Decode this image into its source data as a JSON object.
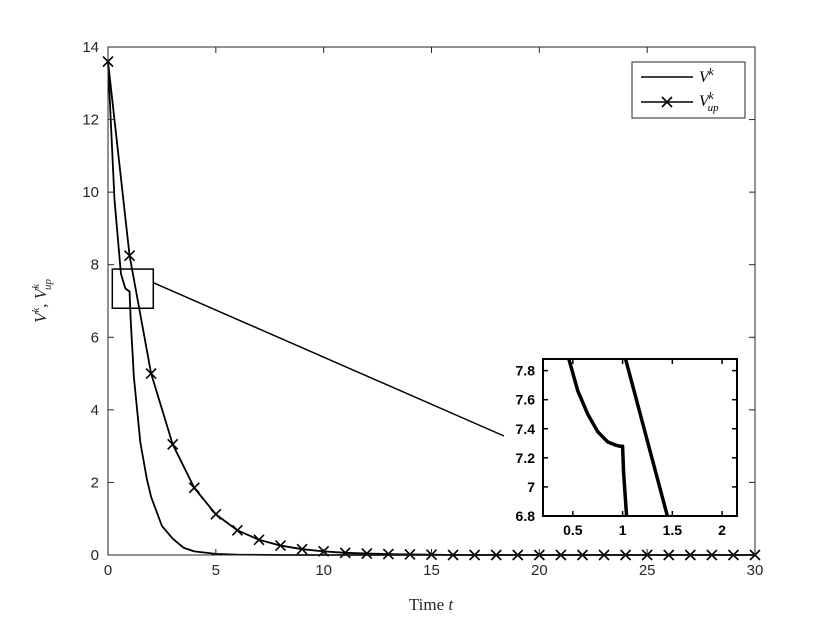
{
  "chart_data": {
    "type": "line",
    "xlabel": "Time t",
    "ylabel": "V^k, V^k_up",
    "xlim": [
      0,
      30
    ],
    "ylim": [
      0,
      14
    ],
    "xticks": [
      0,
      5,
      10,
      15,
      20,
      25,
      30
    ],
    "yticks": [
      0,
      2,
      4,
      6,
      8,
      10,
      12,
      14
    ],
    "grid": false,
    "legend_position": "top-right",
    "series": [
      {
        "name": "V^k",
        "marker": "none",
        "x": [
          0,
          0.3,
          0.6,
          0.8,
          0.95,
          1.0,
          1.05,
          1.2,
          1.5,
          1.8,
          2.0,
          2.5,
          3.0,
          3.5,
          4.0,
          5.0,
          6.0,
          8.0,
          10.0,
          15.0,
          20.0,
          25.0,
          30.0
        ],
        "y": [
          13.6,
          9.8,
          7.75,
          7.35,
          7.28,
          7.27,
          6.5,
          4.9,
          3.1,
          2.1,
          1.6,
          0.8,
          0.45,
          0.2,
          0.1,
          0.03,
          0.01,
          0.0,
          0.0,
          0.0,
          0.0,
          0.0,
          0.0
        ]
      },
      {
        "name": "V^k_up",
        "marker": "x",
        "x": [
          0,
          1,
          2,
          3,
          4,
          5,
          6,
          7,
          8,
          9,
          10,
          11,
          12,
          13,
          14,
          15,
          16,
          17,
          18,
          19,
          20,
          21,
          22,
          23,
          24,
          25,
          26,
          27,
          28,
          29,
          30
        ],
        "y": [
          13.6,
          8.25,
          5.0,
          3.05,
          1.85,
          1.12,
          0.68,
          0.42,
          0.26,
          0.16,
          0.1,
          0.06,
          0.04,
          0.025,
          0.015,
          0.01,
          0.0,
          0.0,
          0.0,
          0.0,
          0.0,
          0.0,
          0.0,
          0.0,
          0.0,
          0.0,
          0.0,
          0.0,
          0.0,
          0.0,
          0.0
        ]
      }
    ],
    "zoom_region": {
      "xlim": [
        0.2,
        2.1
      ],
      "ylim": [
        6.8,
        7.88
      ]
    },
    "inset": {
      "xlim": [
        0.2,
        2.15
      ],
      "ylim": [
        6.8,
        7.88
      ],
      "xticks": [
        0.5,
        1,
        1.5,
        2
      ],
      "xticklabels": [
        "0.5",
        "1",
        "1.5",
        "2"
      ],
      "yticks": [
        6.8,
        7,
        7.2,
        7.4,
        7.6,
        7.8
      ],
      "yticklabels": [
        "6.8",
        "7",
        "7.2",
        "7.4",
        "7.6",
        "7.8"
      ],
      "series_vk": {
        "x": [
          0.46,
          0.55,
          0.65,
          0.75,
          0.85,
          0.92,
          0.97,
          1.0,
          1.01,
          1.04
        ],
        "y": [
          7.88,
          7.66,
          7.5,
          7.38,
          7.31,
          7.29,
          7.28,
          7.28,
          7.1,
          6.8
        ]
      },
      "series_vup": {
        "x": [
          1.03,
          1.45
        ],
        "y": [
          7.88,
          6.8
        ]
      }
    }
  }
}
